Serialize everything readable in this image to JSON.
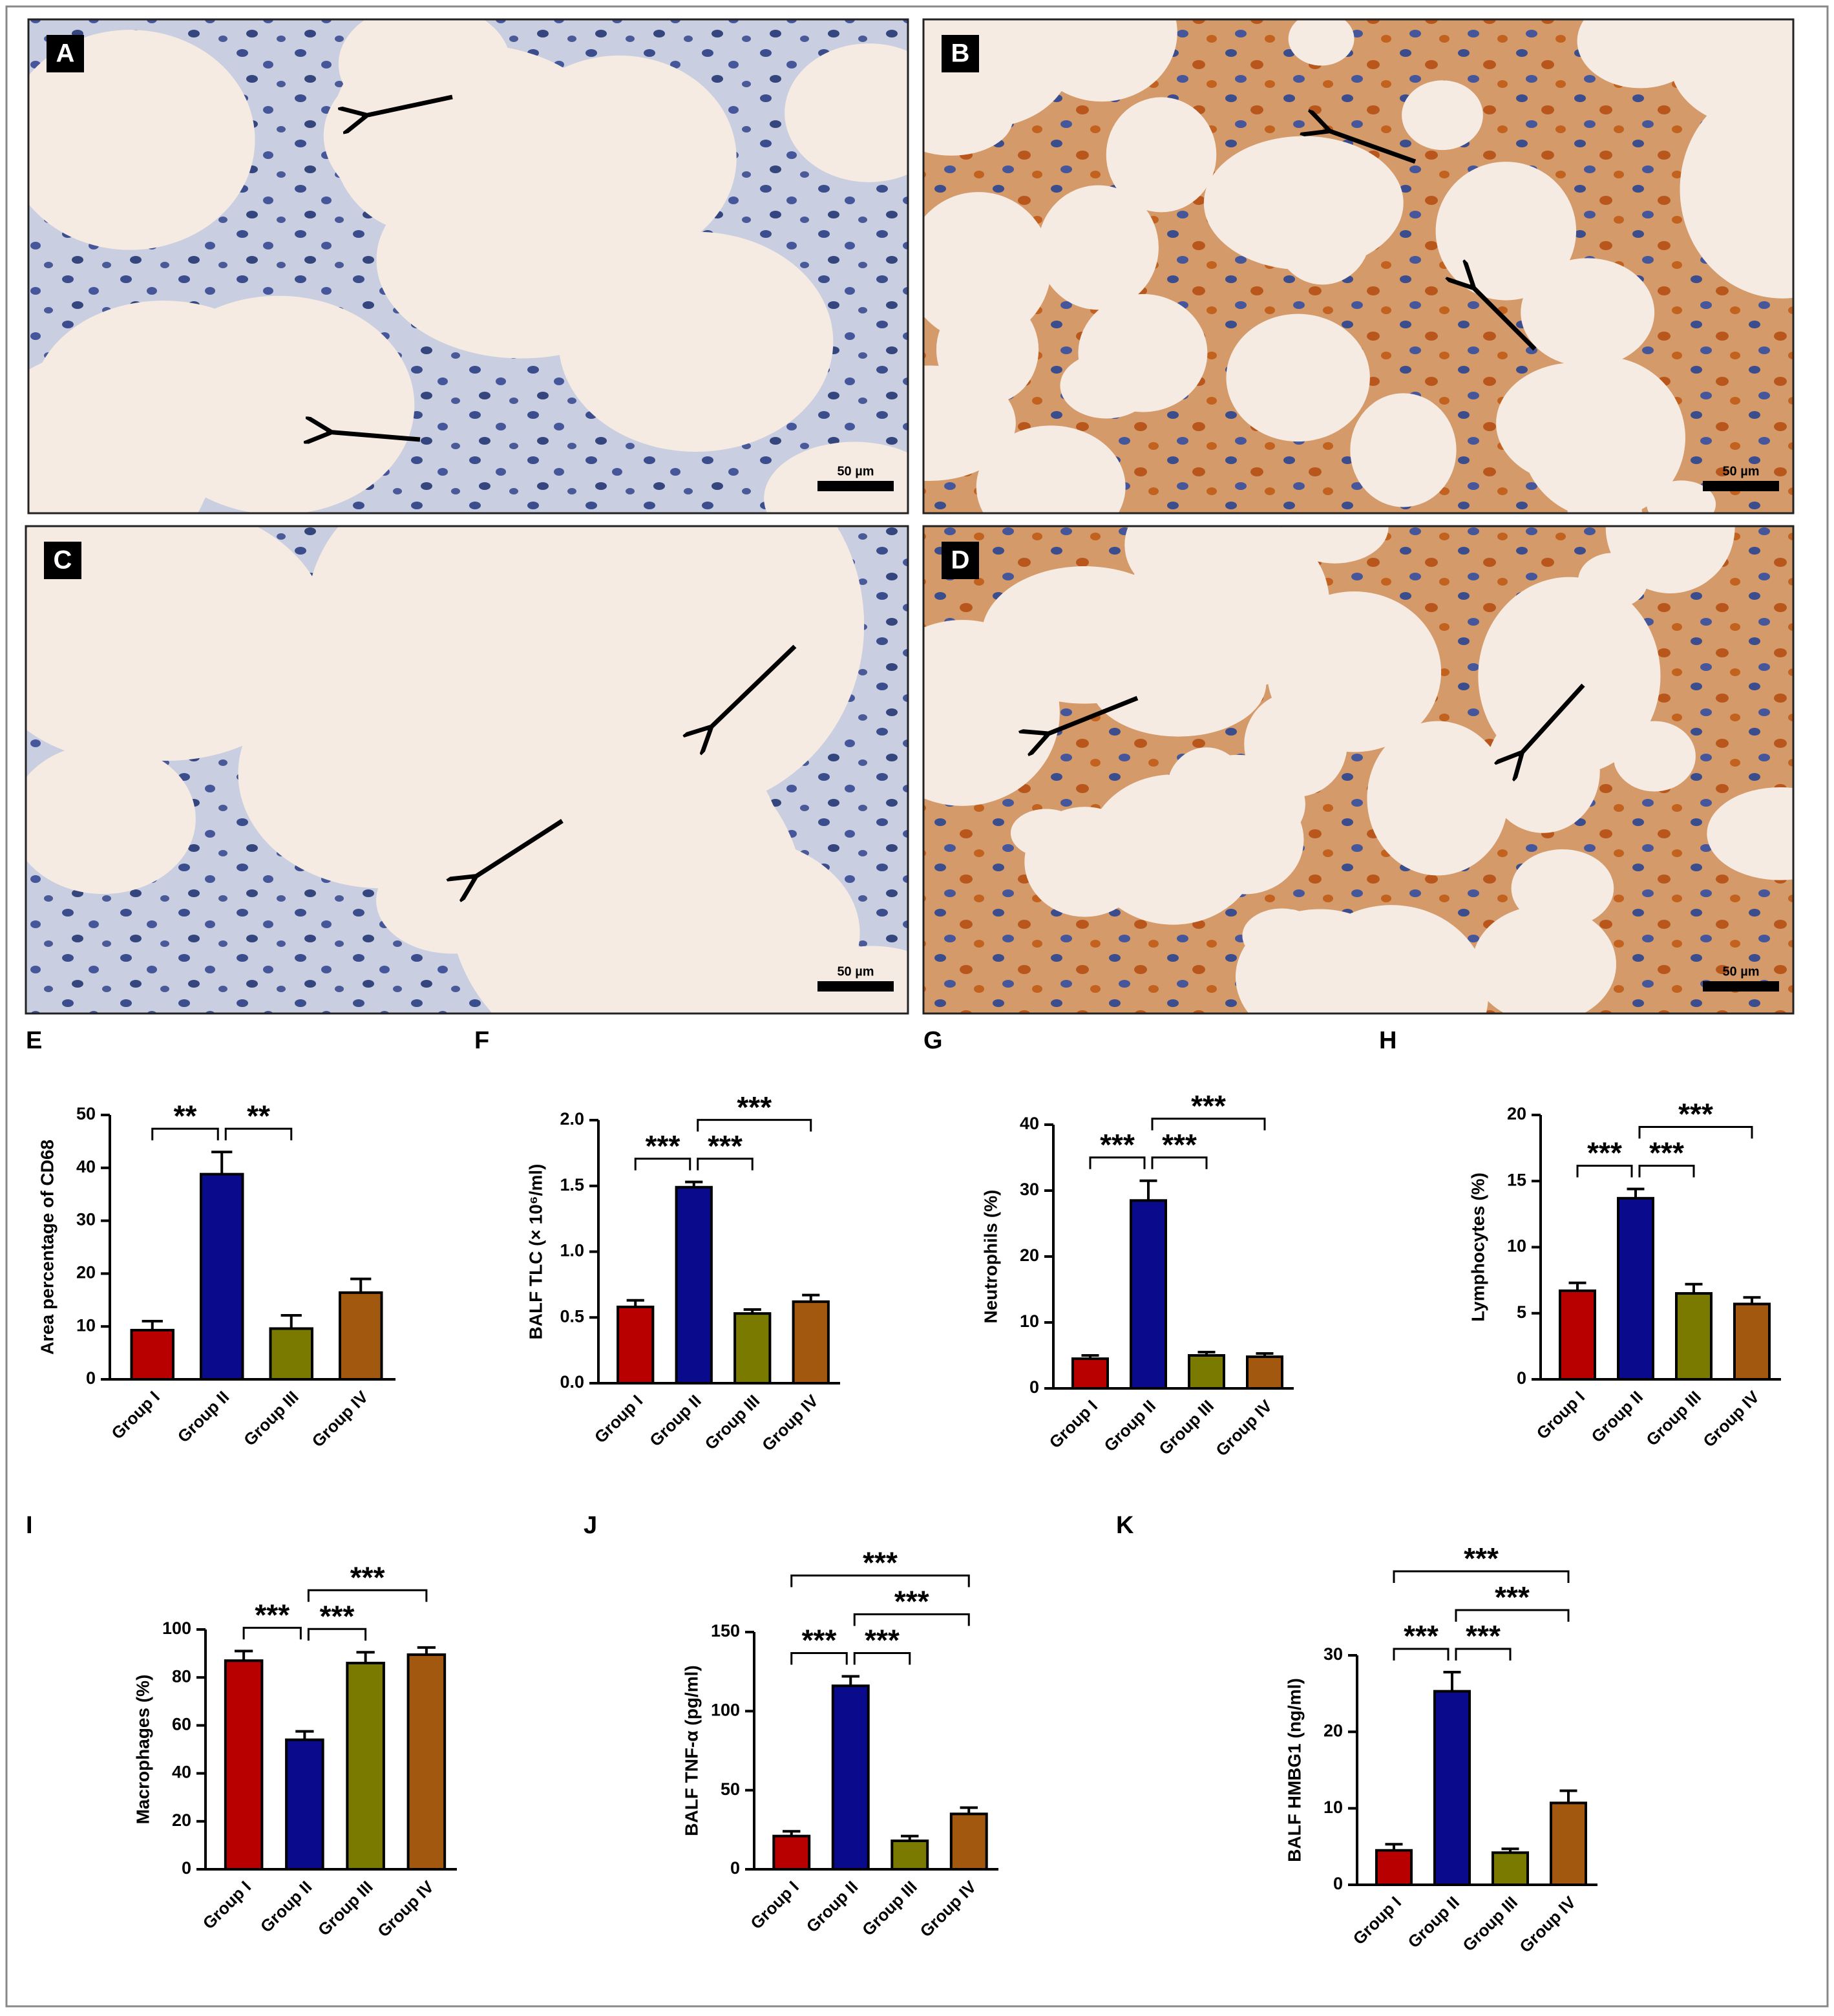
{
  "images": [
    {
      "label": "A",
      "scale": "50 µm"
    },
    {
      "label": "B",
      "scale": "50 µm"
    },
    {
      "label": "C",
      "scale": "50 µm"
    },
    {
      "label": "D",
      "scale": "50 µm"
    }
  ],
  "chart_data": [
    {
      "type": "bar",
      "panel": "E",
      "ylabel": "Area percentage of CD68",
      "categories": [
        "Group I",
        "Group II",
        "Group III",
        "Group IV"
      ],
      "values": [
        9.3,
        38.8,
        9.6,
        16.4
      ],
      "errors": [
        1.7,
        4.2,
        2.5,
        2.6
      ],
      "colors": [
        "#b80000",
        "#0a0a8c",
        "#7a7a00",
        "#a3580f"
      ],
      "ylim": [
        0,
        50
      ],
      "yticks": [
        0,
        10,
        20,
        30,
        40,
        50
      ],
      "comparisons": [
        {
          "groups": [
            0,
            1
          ],
          "label": "**"
        },
        {
          "groups": [
            1,
            2
          ],
          "label": "**"
        }
      ]
    },
    {
      "type": "bar",
      "panel": "F",
      "ylabel": "BALF TLC (× 10⁶/ml)",
      "categories": [
        "Group I",
        "Group II",
        "Group III",
        "Group IV"
      ],
      "values": [
        0.58,
        1.49,
        0.53,
        0.62
      ],
      "errors": [
        0.05,
        0.04,
        0.03,
        0.05
      ],
      "colors": [
        "#b80000",
        "#0a0a8c",
        "#7a7a00",
        "#a3580f"
      ],
      "ylim": [
        0,
        2
      ],
      "yticks": [
        {
          "value": 0,
          "label": "0.0"
        },
        0.5,
        {
          "value": 1,
          "label": "1.0"
        },
        1.5,
        {
          "value": 2,
          "label": "2.0"
        }
      ],
      "comparisons": [
        {
          "groups": [
            0,
            1
          ],
          "label": "***"
        },
        {
          "groups": [
            1,
            2
          ],
          "label": "***"
        },
        {
          "groups": [
            1,
            3
          ],
          "label": "***"
        }
      ]
    },
    {
      "type": "bar",
      "panel": "G",
      "ylabel": "Neutrophils (%)",
      "categories": [
        "Group I",
        "Group II",
        "Group III",
        "Group IV"
      ],
      "values": [
        4.5,
        28.5,
        5.0,
        4.8
      ],
      "errors": [
        0.5,
        3.0,
        0.5,
        0.5
      ],
      "colors": [
        "#b80000",
        "#0a0a8c",
        "#7a7a00",
        "#a3580f"
      ],
      "ylim": [
        0,
        40
      ],
      "yticks": [
        0,
        10,
        20,
        30,
        40
      ],
      "comparisons": [
        {
          "groups": [
            0,
            1
          ],
          "label": "***"
        },
        {
          "groups": [
            1,
            2
          ],
          "label": "***"
        },
        {
          "groups": [
            1,
            3
          ],
          "label": "***"
        }
      ]
    },
    {
      "type": "bar",
      "panel": "H",
      "ylabel": "Lymphocytes (%)",
      "categories": [
        "Group I",
        "Group II",
        "Group III",
        "Group IV"
      ],
      "values": [
        6.7,
        13.7,
        6.5,
        5.7
      ],
      "errors": [
        0.6,
        0.7,
        0.7,
        0.5
      ],
      "colors": [
        "#b80000",
        "#0a0a8c",
        "#7a7a00",
        "#a3580f"
      ],
      "ylim": [
        0,
        20
      ],
      "yticks": [
        0,
        5,
        10,
        15,
        20
      ],
      "comparisons": [
        {
          "groups": [
            0,
            1
          ],
          "label": "***"
        },
        {
          "groups": [
            1,
            2
          ],
          "label": "***"
        },
        {
          "groups": [
            1,
            3
          ],
          "label": "***"
        }
      ]
    },
    {
      "type": "bar",
      "panel": "I",
      "ylabel": "Macrophages (%)",
      "categories": [
        "Group I",
        "Group II",
        "Group III",
        "Group IV"
      ],
      "values": [
        87,
        54,
        86,
        89.5
      ],
      "errors": [
        4,
        3.5,
        4.5,
        3
      ],
      "colors": [
        "#b80000",
        "#0a0a8c",
        "#7a7a00",
        "#a3580f"
      ],
      "ylim": [
        0,
        100
      ],
      "yticks": [
        0,
        20,
        40,
        60,
        80,
        100
      ],
      "comparisons": [
        {
          "groups": [
            0,
            1
          ],
          "label": "***"
        },
        {
          "groups": [
            1,
            2
          ],
          "label": "***"
        },
        {
          "groups": [
            1,
            3
          ],
          "label": "***"
        }
      ]
    },
    {
      "type": "bar",
      "panel": "J",
      "ylabel": "BALF TNF-α (pg/ml)",
      "categories": [
        "Group I",
        "Group II",
        "Group III",
        "Group IV"
      ],
      "values": [
        21,
        116,
        18,
        35
      ],
      "errors": [
        3,
        6,
        3,
        4
      ],
      "colors": [
        "#b80000",
        "#0a0a8c",
        "#7a7a00",
        "#a3580f"
      ],
      "ylim": [
        0,
        150
      ],
      "yticks": [
        0,
        50,
        100,
        150
      ],
      "comparisons": [
        {
          "groups": [
            0,
            1
          ],
          "label": "***"
        },
        {
          "groups": [
            1,
            2
          ],
          "label": "***"
        },
        {
          "groups": [
            1,
            3
          ],
          "label": "***"
        },
        {
          "groups": [
            0,
            3
          ],
          "label": "***"
        }
      ]
    },
    {
      "type": "bar",
      "panel": "K",
      "ylabel": "BALF HMBG1 (ng/ml)",
      "categories": [
        "Group I",
        "Group II",
        "Group III",
        "Group IV"
      ],
      "values": [
        4.5,
        25.3,
        4.2,
        10.7
      ],
      "errors": [
        0.8,
        2.5,
        0.5,
        1.6
      ],
      "colors": [
        "#b80000",
        "#0a0a8c",
        "#7a7a00",
        "#a3580f"
      ],
      "ylim": [
        0,
        30
      ],
      "yticks": [
        0,
        10,
        20,
        30
      ],
      "comparisons": [
        {
          "groups": [
            0,
            1
          ],
          "label": "***"
        },
        {
          "groups": [
            1,
            2
          ],
          "label": "***"
        },
        {
          "groups": [
            1,
            3
          ],
          "label": "***"
        },
        {
          "groups": [
            0,
            3
          ],
          "label": "***"
        }
      ]
    }
  ]
}
